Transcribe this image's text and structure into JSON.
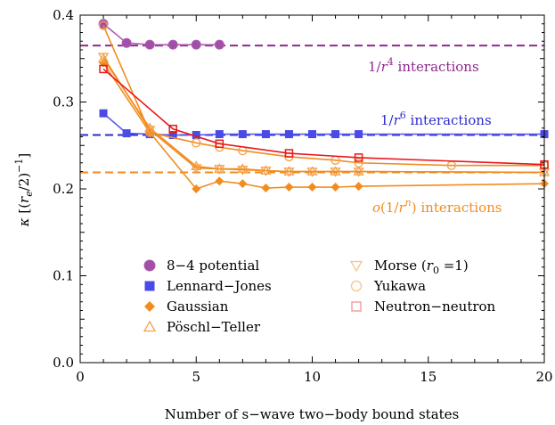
{
  "chart_data": {
    "type": "line",
    "xlabel": "Number of s−wave two−body bound states",
    "ylabel": "κ [(r_e/2)^−1]",
    "xlim": [
      0,
      20
    ],
    "ylim": [
      0.0,
      0.4
    ],
    "xticks": [
      0,
      5,
      10,
      15,
      20
    ],
    "yticks": [
      0.0,
      0.1,
      0.2,
      0.3,
      0.4
    ],
    "xtick_labels": [
      "0",
      "5",
      "10",
      "15",
      "20"
    ],
    "ytick_labels": [
      "0.0",
      "0.1",
      "0.2",
      "0.3",
      "0.4"
    ],
    "grid": false,
    "legend_position": "bottom-center",
    "reference_lines": [
      {
        "name": "1/r^4 interactions",
        "y": 0.365,
        "color": "#8e2a8e",
        "style": "dashed"
      },
      {
        "name": "1/r^6 interactions",
        "y": 0.262,
        "color": "#2b2bcc",
        "style": "dashed"
      },
      {
        "name": "o(1/r^n) interactions",
        "y": 0.219,
        "color": "#f28c1e",
        "style": "dashed"
      }
    ],
    "series": [
      {
        "name": "8−4 potential",
        "marker": "circle-filled",
        "color": "#a24fa8",
        "stroke": "#b05bb5",
        "x": [
          1,
          2,
          3,
          4,
          5,
          6
        ],
        "y": [
          0.39,
          0.368,
          0.366,
          0.366,
          0.366,
          0.366
        ]
      },
      {
        "name": "Lennard−Jones",
        "marker": "square-filled",
        "color": "#4a4ae6",
        "stroke": "#5a5aee",
        "x": [
          1,
          2,
          3,
          4,
          5,
          6,
          7,
          8,
          9,
          10,
          11,
          12,
          20
        ],
        "y": [
          0.287,
          0.264,
          0.263,
          0.262,
          0.262,
          0.263,
          0.263,
          0.263,
          0.263,
          0.263,
          0.263,
          0.263,
          0.263
        ]
      },
      {
        "name": "Gaussian",
        "marker": "diamond-filled",
        "color": "#f28c1e",
        "stroke": "#f28c1e",
        "x": [
          1,
          3,
          5,
          6,
          7,
          8,
          9,
          10,
          11,
          12,
          20
        ],
        "y": [
          0.345,
          0.265,
          0.2,
          0.209,
          0.206,
          0.201,
          0.202,
          0.202,
          0.202,
          0.203,
          0.206
        ]
      },
      {
        "name": "Pöschl−Teller",
        "marker": "triangle-up-open",
        "color": "#f5a04a",
        "stroke": "#f28c1e",
        "x": [
          1,
          3,
          5,
          6,
          7,
          8,
          9,
          10,
          11,
          12,
          20
        ],
        "y": [
          0.35,
          0.27,
          0.226,
          0.223,
          0.223,
          0.221,
          0.22,
          0.22,
          0.22,
          0.22,
          0.219
        ]
      },
      {
        "name": "Morse (r_0 =1)",
        "marker": "triangle-down-open",
        "color": "#f5a04a",
        "stroke": "#f28c1e",
        "x": [
          1,
          3,
          5,
          6,
          7,
          8,
          9,
          10,
          11,
          12,
          20
        ],
        "y": [
          0.352,
          0.268,
          0.224,
          0.223,
          0.222,
          0.221,
          0.22,
          0.22,
          0.22,
          0.22,
          0.219
        ]
      },
      {
        "name": "Yukawa",
        "marker": "circle-open",
        "color": "#f5a04a",
        "stroke": "#f28c1e",
        "x": [
          1,
          3,
          5,
          6,
          7,
          9,
          11,
          12,
          16,
          20
        ],
        "y": [
          0.388,
          0.265,
          0.253,
          0.248,
          0.244,
          0.237,
          0.233,
          0.23,
          0.227,
          0.227
        ]
      },
      {
        "name": "Neutron−neutron",
        "marker": "square-open",
        "color": "#e8181c",
        "stroke": "#e8181c",
        "x": [
          1,
          4,
          6,
          9,
          12,
          20
        ],
        "y": [
          0.338,
          0.269,
          0.252,
          0.241,
          0.236,
          0.228
        ]
      }
    ],
    "legend": {
      "left": [
        "8−4 potential",
        "Lennard−Jones",
        "Gaussian",
        "Pöschl−Teller"
      ],
      "right": [
        "Morse (r_0 =1)",
        "Yukawa",
        "Neutron−neutron"
      ]
    }
  }
}
